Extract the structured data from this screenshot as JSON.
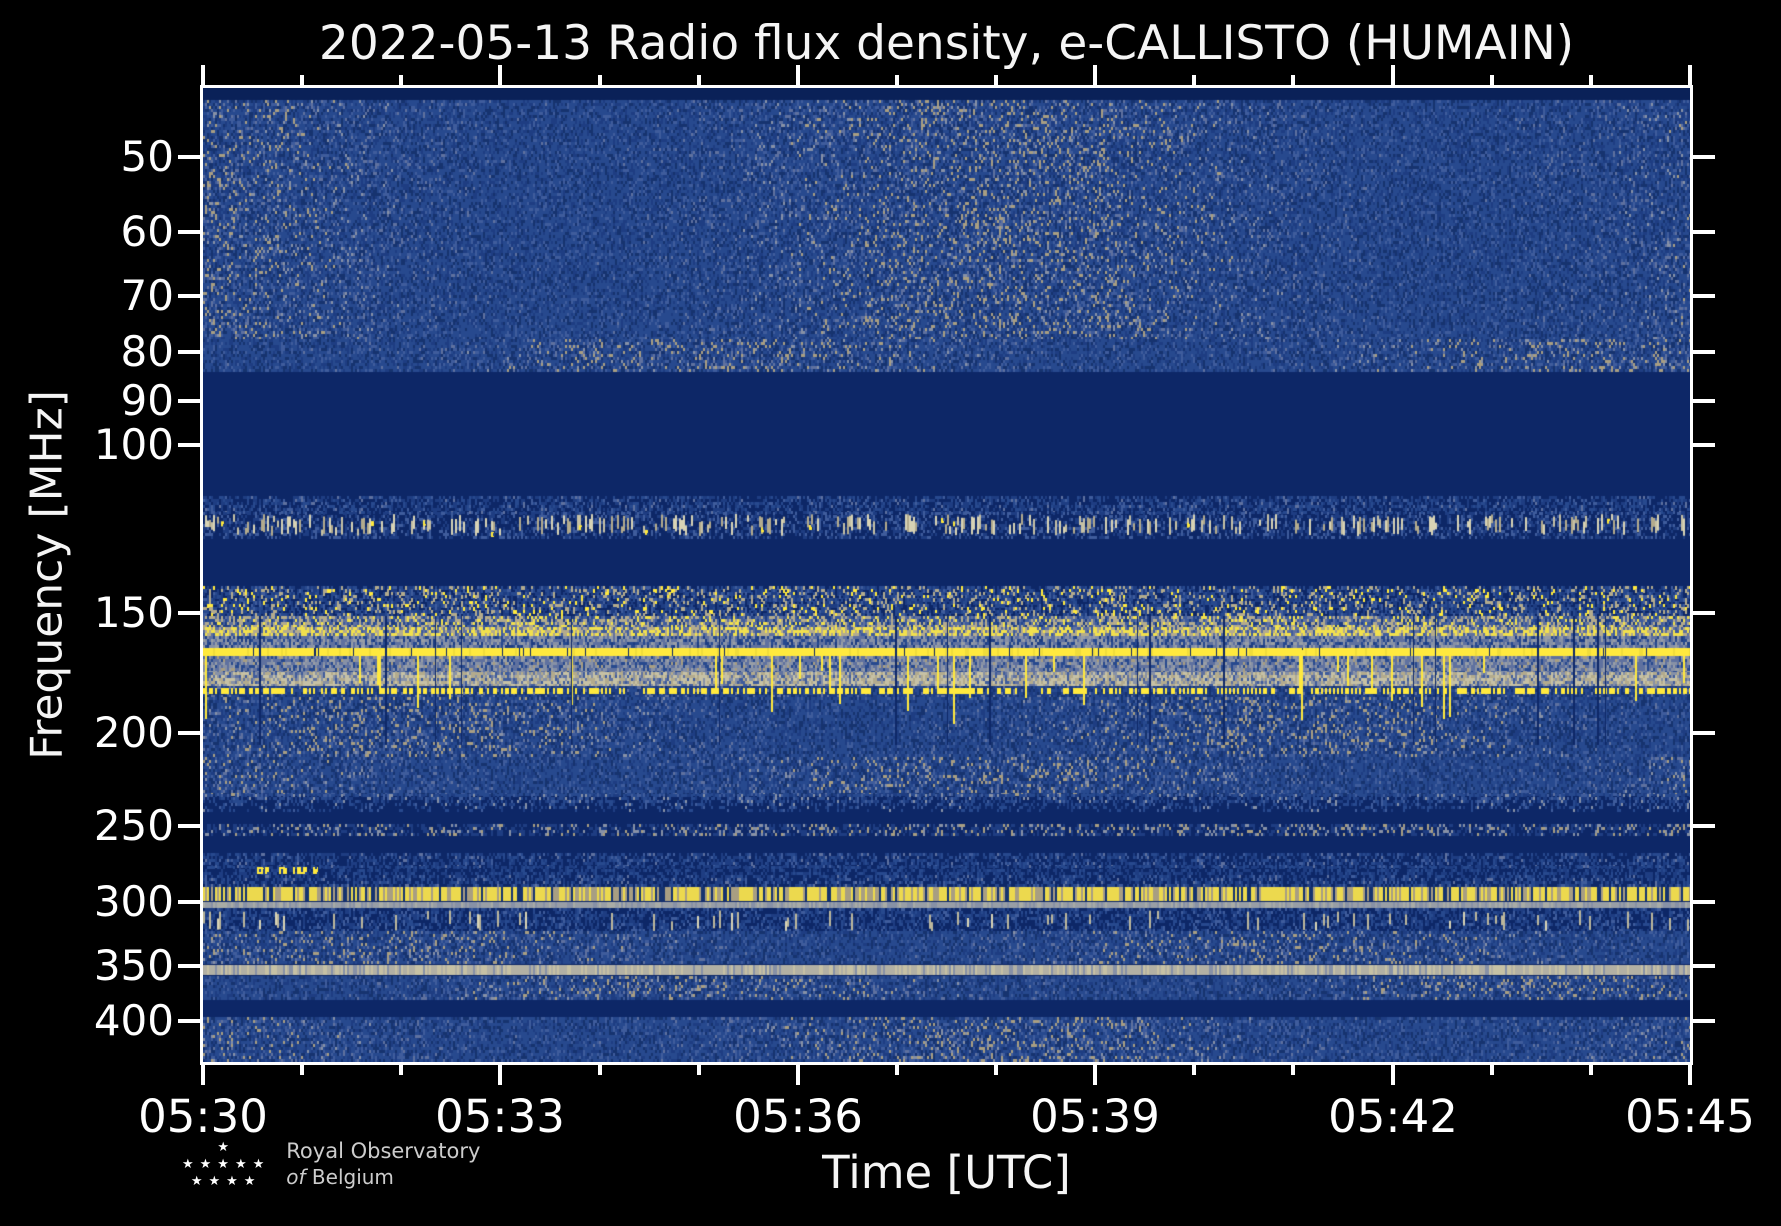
{
  "title": "2022-05-13 Radio flux density, e-CALLISTO (HUMAIN)",
  "axes": {
    "x": {
      "label": "Time [UTC]",
      "ticks": [
        "05:30",
        "05:33",
        "05:36",
        "05:39",
        "05:42",
        "05:45"
      ],
      "minor_step_minutes": 1,
      "major_step_minutes": 3,
      "start": "05:30",
      "end": "05:45"
    },
    "y": {
      "label": "Frequency [MHz]",
      "ticks": [
        50,
        60,
        70,
        80,
        90,
        100,
        150,
        200,
        250,
        300,
        350,
        400
      ],
      "scale": "log",
      "top_mhz": 42.4,
      "bottom_mhz": 441.3,
      "direction": "increasing-downward"
    }
  },
  "logo": {
    "line1": "Royal Observatory",
    "line2_italic": "of",
    "line2": "Belgium",
    "star_rows": [
      1,
      5,
      4
    ],
    "star_glyph": "★"
  },
  "colors": {
    "background": "#000000",
    "spine": "#ffffff",
    "text": "#f5f5f5",
    "logo_text": "#cccccc",
    "navy_darkest": "#0a2158",
    "navy": "#0d2767",
    "blue": "#27498e",
    "blueAlt": "#1e3d82",
    "blueDark": "#16336f",
    "blueLight": "#3f5c9c",
    "steel": "#5f719f",
    "greyBlue": "#8791a6",
    "grey": "#989ea6",
    "paleGrey": "#a9aca6",
    "tan": "#a89e82",
    "tan2": "#b3ab8d",
    "tanBlob": "#bcb79c",
    "pale": "#c6c1a5",
    "cream": "#d8d3b5",
    "yellow": "#ffe93e",
    "yellowDull": "#f0dc3a",
    "yellowDot": "#ecd94e",
    "greyStrong": "#b2b0a4"
  },
  "chart_data": {
    "type": "heatmap",
    "subtype": "radio-spectrogram",
    "title": "2022-05-13 Radio flux density, e-CALLISTO (HUMAIN)",
    "date": "2022-05-13",
    "instrument": "e-CALLISTO",
    "station": "HUMAIN",
    "xlabel": "Time [UTC]",
    "ylabel": "Frequency [MHz]",
    "x_range": [
      "05:30",
      "05:45"
    ],
    "y_range_mhz": [
      42.4,
      441.3
    ],
    "y_scale": "log",
    "y_inverted": true,
    "legend": "none",
    "grid": false,
    "bands": [
      {
        "f": [
          42.4,
          43.6
        ],
        "style": "solid",
        "color": "#0a2158"
      },
      {
        "f": [
          43.6,
          77.5
        ],
        "style": "noise",
        "lines": [
          {
            "f": 45.2,
            "tone": "light",
            "w": 4
          },
          {
            "f": 48.0,
            "tone": "light",
            "w": 3
          },
          {
            "f": 50.6,
            "tone": "lighter",
            "w": 5
          },
          {
            "f": 55.0,
            "tone": "light",
            "w": 3
          },
          {
            "f": 60.2,
            "tone": "dark",
            "w": 5
          },
          {
            "f": 62.5,
            "tone": "lighter",
            "w": 9
          },
          {
            "f": 65.0,
            "tone": "grey",
            "w": 4
          },
          {
            "f": 69.0,
            "tone": "light",
            "w": 4
          },
          {
            "f": 73.0,
            "tone": "tan",
            "w": 6
          },
          {
            "f": 76.0,
            "tone": "light",
            "w": 3
          }
        ]
      },
      {
        "f": [
          77.5,
          84.0
        ],
        "style": "noise",
        "lines": [
          {
            "f": 80.0,
            "tone": "tan",
            "w": 7
          },
          {
            "f": 82.5,
            "tone": "light",
            "w": 3
          }
        ]
      },
      {
        "f": [
          84.0,
          113.0
        ],
        "style": "solid",
        "color": "#0d2767"
      },
      {
        "f": [
          113.0,
          117.5
        ],
        "style": "noise_dim"
      },
      {
        "f": [
          117.5,
          125.0
        ],
        "style": "airband"
      },
      {
        "f": [
          125.0,
          140.5
        ],
        "style": "solid",
        "color": "#0d2767"
      },
      {
        "f": [
          140.5,
          151.0
        ],
        "style": "noise_yellow",
        "py": 0.1,
        "pt": 0.14
      },
      {
        "f": [
          151.0,
          155.0
        ],
        "style": "yellow_mix",
        "yp": 0.12,
        "tp": 0.3
      },
      {
        "f": [
          155.0,
          158.5
        ],
        "style": "yellow_mix",
        "yp": 0.42,
        "tp": 0.28
      },
      {
        "f": [
          158.5,
          163.2
        ],
        "style": "noise_grey"
      },
      {
        "f": [
          163.2,
          166.4
        ],
        "style": "yellow_solid"
      },
      {
        "f": [
          166.4,
          172.7
        ],
        "style": "grey_streaks"
      },
      {
        "f": [
          172.7,
          178.5
        ],
        "style": "pale"
      },
      {
        "f": [
          178.5,
          183.5
        ],
        "style": "yellow_dashes"
      },
      {
        "f": [
          183.5,
          212.0
        ],
        "style": "noise",
        "lines": [
          {
            "f": 186.0,
            "tone": "grey",
            "w": 4
          },
          {
            "f": 191.0,
            "tone": "tan",
            "w": 3
          },
          {
            "f": 197.0,
            "tone": "light",
            "w": 3
          },
          {
            "f": 203.0,
            "tone": "light",
            "w": 4
          }
        ]
      },
      {
        "f": [
          212.0,
          231.5
        ],
        "style": "noise",
        "lines": [
          {
            "f": 219.0,
            "tone": "lighter",
            "w": 6
          },
          {
            "f": 226.5,
            "tone": "tan",
            "w": 4
          }
        ]
      },
      {
        "f": [
          231.5,
          241.5
        ],
        "style": "noise_fade"
      },
      {
        "f": [
          241.5,
          249.0
        ],
        "style": "solid",
        "color": "#0d2767"
      },
      {
        "f": [
          249.0,
          256.0
        ],
        "style": "line_noise"
      },
      {
        "f": [
          256.0,
          267.0
        ],
        "style": "solid",
        "color": "#0d2767"
      },
      {
        "f": [
          267.0,
          275.5
        ],
        "style": "noise_dim"
      },
      {
        "f": [
          275.5,
          281.5
        ],
        "style": "yellow_blob_row"
      },
      {
        "f": [
          281.5,
          289.0
        ],
        "style": "noise_dim"
      },
      {
        "f": [
          289.0,
          300.0
        ],
        "style": "yellow_dotline"
      },
      {
        "f": [
          300.0,
          305.0
        ],
        "style": "grey_line"
      },
      {
        "f": [
          305.0,
          322.0
        ],
        "style": "tan_blob_row"
      },
      {
        "f": [
          322.0,
          349.0
        ],
        "style": "noise",
        "lines": [
          {
            "f": 330.0,
            "tone": "light",
            "w": 3
          },
          {
            "f": 340.0,
            "tone": "light",
            "w": 3
          }
        ]
      },
      {
        "f": [
          349.0,
          359.0
        ],
        "style": "grey_line_strong"
      },
      {
        "f": [
          359.0,
          380.0
        ],
        "style": "noise",
        "lines": [
          {
            "f": 362.0,
            "tone": "tan",
            "w": 4
          },
          {
            "f": 368.0,
            "tone": "light",
            "w": 3
          },
          {
            "f": 374.0,
            "tone": "grey",
            "w": 4
          }
        ]
      },
      {
        "f": [
          380.0,
          396.5
        ],
        "style": "solid",
        "color": "#0d2767"
      },
      {
        "f": [
          396.5,
          441.3
        ],
        "style": "noise",
        "lines": [
          {
            "f": 400.0,
            "tone": "dark",
            "w": 5
          },
          {
            "f": 405.0,
            "tone": "grey",
            "w": 4
          },
          {
            "f": 412.0,
            "tone": "tan",
            "w": 3
          },
          {
            "f": 425.0,
            "tone": "light",
            "w": 3
          },
          {
            "f": 433.0,
            "tone": "grey",
            "w": 3
          }
        ]
      }
    ],
    "features": {
      "strong_rfi_band_mhz": [
        163.2,
        166.4
      ],
      "rfi_streaks_down_to_mhz": 196,
      "quiet_gaps_mhz": [
        [
          84,
          113
        ],
        [
          125,
          140.5
        ],
        [
          241.5,
          275.5
        ],
        [
          380,
          396.5
        ]
      ],
      "dotted_rfi_line_mhz": 295,
      "continuous_grey_line_mhz": 352,
      "yellow_speckle_cluster": {
        "f_mhz": [
          275.5,
          281.5
        ],
        "time_fraction": [
          0.03,
          0.2
        ]
      }
    }
  }
}
